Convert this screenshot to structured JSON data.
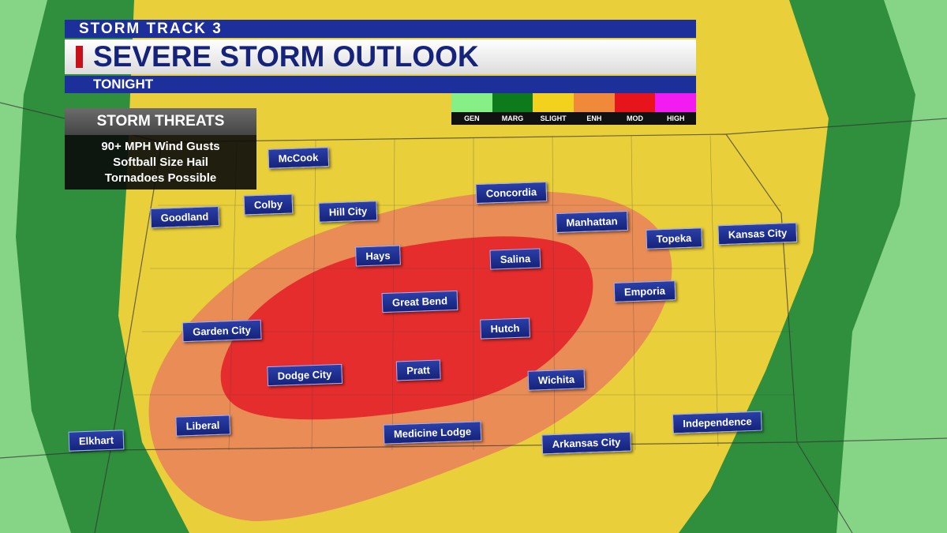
{
  "header": {
    "network": "STORM TRACK 3",
    "title": "SEVERE STORM OUTLOOK",
    "subtitle": "TONIGHT"
  },
  "legend": [
    {
      "label": "GEN",
      "color": "#86ef86"
    },
    {
      "label": "MARG",
      "color": "#0d7a1c"
    },
    {
      "label": "SLIGHT",
      "color": "#f2d21c"
    },
    {
      "label": "ENH",
      "color": "#f08a3a"
    },
    {
      "label": "MOD",
      "color": "#e8141c"
    },
    {
      "label": "HIGH",
      "color": "#f21cf0"
    }
  ],
  "threats": {
    "title": "STORM THREATS",
    "items": [
      "90+ MPH Wind Gusts",
      "Softball Size Hail",
      "Tornadoes Possible"
    ]
  },
  "cities": [
    "McCook",
    "Goodland",
    "Colby",
    "Hill City",
    "Concordia",
    "Manhattan",
    "Topeka",
    "Kansas City",
    "Hays",
    "Salina",
    "Emporia",
    "Great Bend",
    "Garden City",
    "Hutch",
    "Dodge City",
    "Pratt",
    "Wichita",
    "Liberal",
    "Independence",
    "Elkhart",
    "Medicine Lodge",
    "Arkansas City"
  ]
}
